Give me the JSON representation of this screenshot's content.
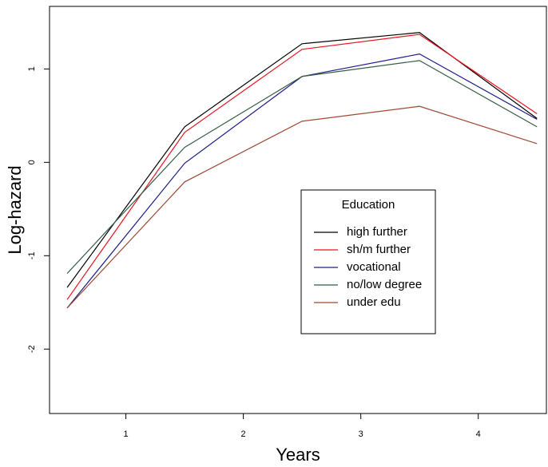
{
  "chart_data": {
    "type": "line",
    "xlabel": "Years",
    "ylabel": "Log-hazard",
    "x": [
      0.5,
      1.5,
      2.5,
      3.5,
      4.5
    ],
    "series": [
      {
        "name": "high further",
        "color": "#000000",
        "values": [
          -1.34,
          0.38,
          1.27,
          1.39,
          0.47
        ]
      },
      {
        "name": "sh/m further",
        "color": "#e8141e",
        "values": [
          -1.47,
          0.32,
          1.21,
          1.37,
          0.52
        ]
      },
      {
        "name": "vocational",
        "color": "#1c1c8a",
        "values": [
          -1.56,
          -0.01,
          0.92,
          1.16,
          0.46
        ]
      },
      {
        "name": "no/low degree",
        "color": "#355e45",
        "values": [
          -1.19,
          0.16,
          0.92,
          1.09,
          0.38
        ]
      },
      {
        "name": "under edu",
        "color": "#9c4a32",
        "values": [
          -1.56,
          -0.21,
          0.44,
          0.6,
          0.2
        ]
      }
    ],
    "legend_title": "Education",
    "xlim": [
      0.35,
      4.58
    ],
    "ylim": [
      -2.69,
      1.67
    ],
    "xticks": [
      1,
      2,
      3,
      4
    ],
    "yticks": [
      -2,
      -1,
      0,
      1
    ]
  }
}
